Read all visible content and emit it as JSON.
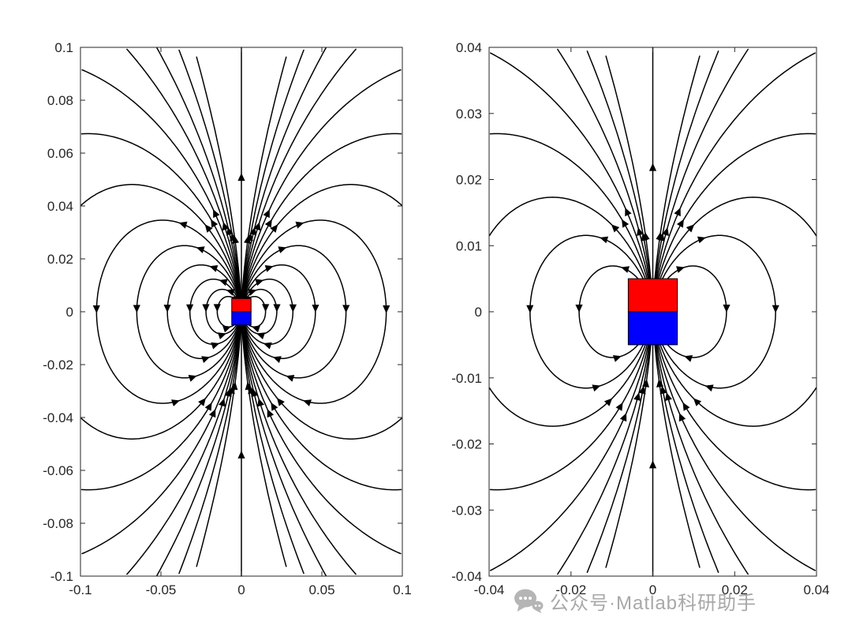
{
  "figure": {
    "background": "#ffffff"
  },
  "watermark": {
    "icon": "chat-bubble-icon",
    "text": "公众号·Matlab科研助手",
    "color": "#a8a8a8"
  },
  "chart_data": [
    {
      "type": "streamline",
      "title": "",
      "xlabel": "",
      "ylabel": "",
      "xlim": [
        -0.1,
        0.1
      ],
      "ylim": [
        -0.1,
        0.1
      ],
      "xticks": {
        "values": [
          -0.1,
          -0.05,
          0,
          0.05,
          0.1
        ],
        "labels": [
          "-0.1",
          "-0.05",
          "0",
          "0.05",
          "0.1"
        ]
      },
      "yticks": {
        "values": [
          -0.1,
          -0.08,
          -0.06,
          -0.04,
          -0.02,
          0,
          0.02,
          0.04,
          0.06,
          0.08,
          0.1
        ],
        "labels": [
          "-0.1",
          "-0.08",
          "-0.06",
          "-0.04",
          "-0.02",
          "0",
          "0.02",
          "0.04",
          "0.06",
          "0.08",
          "0.1"
        ]
      },
      "grid": false,
      "legend": "none",
      "description": "Magnetic dipole (bar magnet) field lines, full view; red north pole on top, blue south pole below, field lines r = C*sin^2(theta) with arrows showing direction out of north and into south",
      "line_color": "#000000",
      "axis_color": "#262626",
      "magnet": {
        "half_width": 0.006,
        "north": {
          "color": "#ff0000",
          "y": [
            0,
            0.005
          ]
        },
        "south": {
          "color": "#0000ff",
          "y": [
            -0.005,
            0
          ]
        }
      },
      "field_line_constants": [
        0.015,
        0.022,
        0.032,
        0.046,
        0.065,
        0.09,
        0.125,
        0.175,
        0.25,
        0.36,
        0.52,
        0.8,
        1.3
      ]
    },
    {
      "type": "streamline",
      "title": "",
      "xlabel": "",
      "ylabel": "",
      "xlim": [
        -0.04,
        0.04
      ],
      "ylim": [
        -0.04,
        0.04
      ],
      "xticks": {
        "values": [
          -0.04,
          -0.02,
          0,
          0.02,
          0.04
        ],
        "labels": [
          "-0.04",
          "-0.02",
          "0",
          "0.02",
          "0.04"
        ]
      },
      "yticks": {
        "values": [
          -0.04,
          -0.03,
          -0.02,
          -0.01,
          0,
          0.01,
          0.02,
          0.03,
          0.04
        ],
        "labels": [
          "-0.04",
          "-0.03",
          "-0.02",
          "-0.01",
          "0",
          "0.01",
          "0.02",
          "0.03",
          "0.04"
        ]
      },
      "grid": false,
      "legend": "none",
      "description": "Magnetic dipole (bar magnet) field lines, zoomed view of the same magnet; red north pole on top, blue south pole below",
      "line_color": "#000000",
      "axis_color": "#262626",
      "magnet": {
        "half_width": 0.006,
        "north": {
          "color": "#ff0000",
          "y": [
            0,
            0.005
          ]
        },
        "south": {
          "color": "#0000ff",
          "y": [
            -0.005,
            0
          ]
        }
      },
      "field_line_constants": [
        0.018,
        0.03,
        0.045,
        0.07,
        0.11,
        0.18,
        0.3,
        0.5
      ]
    }
  ]
}
